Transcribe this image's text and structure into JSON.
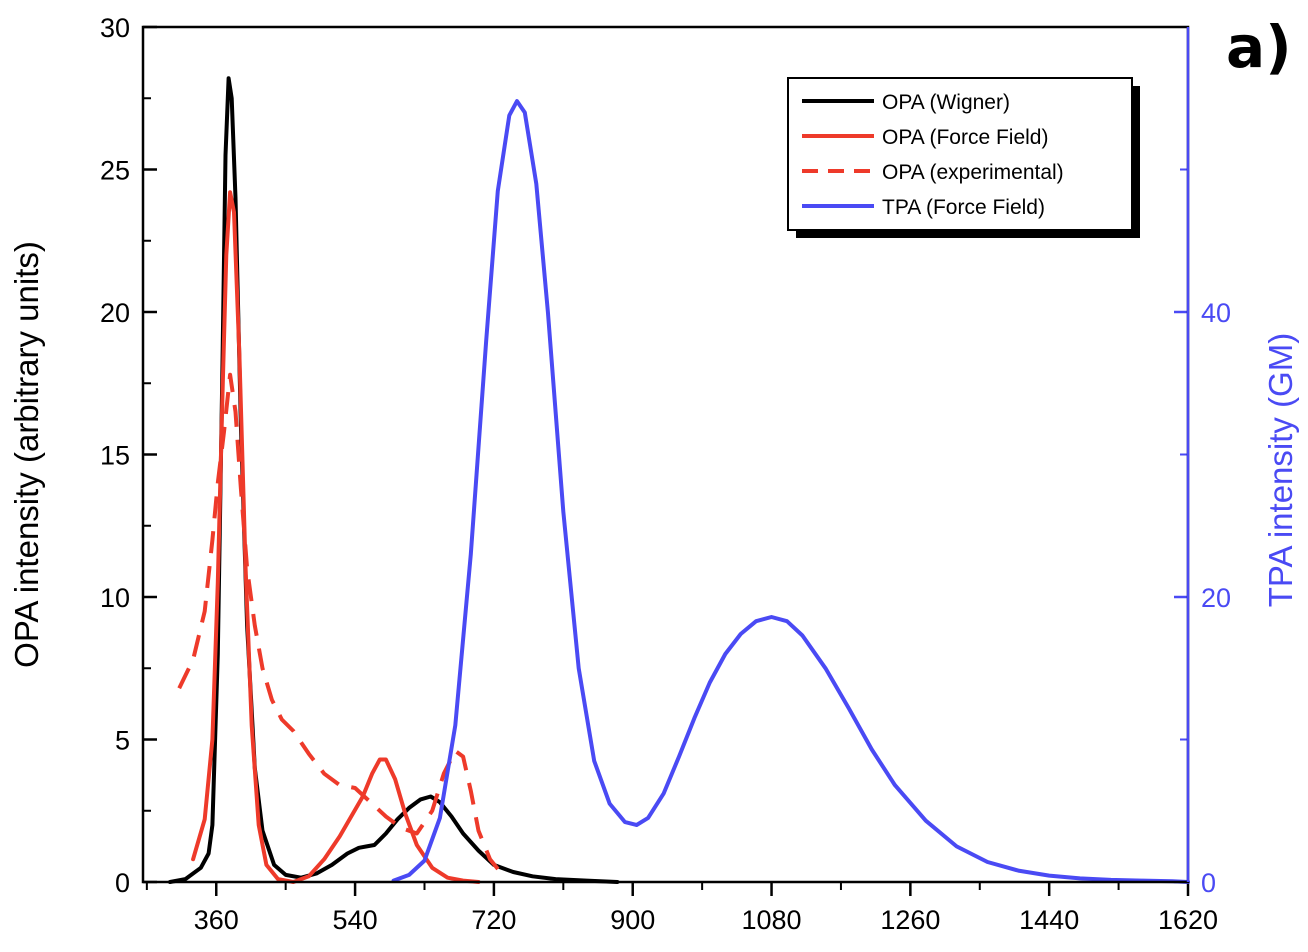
{
  "chart_data": {
    "type": "line",
    "panel_label": "a)",
    "xlim": [
      265,
      1620
    ],
    "xticks": [
      360,
      540,
      720,
      900,
      1080,
      1260,
      1440,
      1620
    ],
    "y_left": {
      "label": "OPA intensity (arbitrary units)",
      "lim": [
        0,
        30
      ],
      "ticks": [
        0,
        5,
        10,
        15,
        20,
        25,
        30
      ],
      "color": "#000000"
    },
    "y_right": {
      "label": "TPA intensity (GM)",
      "lim": [
        0,
        60
      ],
      "ticks": [
        0,
        20,
        40
      ],
      "color": "#4a4af4"
    },
    "grid": false,
    "legend": {
      "position": "top-right"
    },
    "series": [
      {
        "name": "OPA (Wigner)",
        "axis": "left",
        "color": "#000000",
        "dash": "solid",
        "x": [
          300,
          320,
          340,
          350,
          355,
          362,
          368,
          372,
          376,
          380,
          385,
          392,
          400,
          410,
          420,
          435,
          450,
          470,
          490,
          510,
          530,
          545,
          555,
          565,
          580,
          595,
          610,
          625,
          638,
          650,
          665,
          680,
          700,
          720,
          745,
          770,
          800,
          840,
          880
        ],
        "y": [
          0,
          0.1,
          0.5,
          1.0,
          2.0,
          8.0,
          18.0,
          25.5,
          28.2,
          27.5,
          24.0,
          16.0,
          9.0,
          4.0,
          1.8,
          0.6,
          0.25,
          0.15,
          0.3,
          0.6,
          1.0,
          1.2,
          1.25,
          1.3,
          1.7,
          2.2,
          2.6,
          2.9,
          3.0,
          2.8,
          2.3,
          1.7,
          1.1,
          0.6,
          0.35,
          0.2,
          0.1,
          0.05,
          0
        ]
      },
      {
        "name": "OPA (Force Field)",
        "axis": "left",
        "color": "#ee3a2a",
        "dash": "solid",
        "x": [
          330,
          345,
          355,
          362,
          368,
          373,
          378,
          383,
          390,
          398,
          406,
          415,
          425,
          440,
          460,
          480,
          500,
          520,
          535,
          550,
          562,
          572,
          580,
          592,
          605,
          620,
          640,
          660,
          680,
          700
        ],
        "y": [
          0.8,
          2.2,
          5.0,
          10.5,
          17.0,
          22.0,
          24.2,
          23.5,
          18.5,
          11.0,
          5.5,
          2.0,
          0.6,
          0.1,
          0,
          0.2,
          0.8,
          1.6,
          2.3,
          3.0,
          3.8,
          4.3,
          4.3,
          3.6,
          2.4,
          1.3,
          0.5,
          0.15,
          0.05,
          0
        ]
      },
      {
        "name": "OPA (experimental)",
        "axis": "left",
        "color": "#ee3a2a",
        "dash": "dashed",
        "x": [
          312,
          330,
          345,
          355,
          362,
          370,
          378,
          385,
          392,
          400,
          410,
          420,
          432,
          445,
          460,
          480,
          500,
          520,
          540,
          560,
          580,
          600,
          620,
          640,
          655,
          670,
          680,
          690,
          700,
          715,
          730
        ],
        "y": [
          6.8,
          7.8,
          9.5,
          12.0,
          14.0,
          15.8,
          17.8,
          16.5,
          13.8,
          11.0,
          9.0,
          7.5,
          6.4,
          5.7,
          5.3,
          4.5,
          3.8,
          3.4,
          3.3,
          2.8,
          2.3,
          1.9,
          1.7,
          2.5,
          3.8,
          4.6,
          4.4,
          3.2,
          1.8,
          0.8,
          0.3
        ]
      },
      {
        "name": "TPA (Force Field)",
        "axis": "right",
        "color": "#4a4af4",
        "dash": "solid",
        "x": [
          590,
          610,
          630,
          650,
          670,
          690,
          710,
          725,
          740,
          750,
          760,
          775,
          790,
          810,
          830,
          850,
          870,
          890,
          905,
          920,
          940,
          960,
          980,
          1000,
          1020,
          1040,
          1060,
          1080,
          1100,
          1120,
          1150,
          1180,
          1210,
          1240,
          1280,
          1320,
          1360,
          1400,
          1440,
          1480,
          1520,
          1560,
          1600,
          1620
        ],
        "y": [
          0.1,
          0.5,
          1.5,
          4.5,
          11.0,
          23.0,
          38.0,
          48.5,
          53.8,
          54.8,
          54.0,
          49.0,
          40.0,
          26.0,
          15.0,
          8.5,
          5.5,
          4.2,
          4.0,
          4.5,
          6.2,
          8.8,
          11.5,
          14.0,
          16.0,
          17.4,
          18.3,
          18.6,
          18.3,
          17.3,
          15.0,
          12.2,
          9.3,
          6.8,
          4.3,
          2.5,
          1.4,
          0.8,
          0.45,
          0.25,
          0.15,
          0.1,
          0.05,
          0
        ]
      }
    ]
  }
}
